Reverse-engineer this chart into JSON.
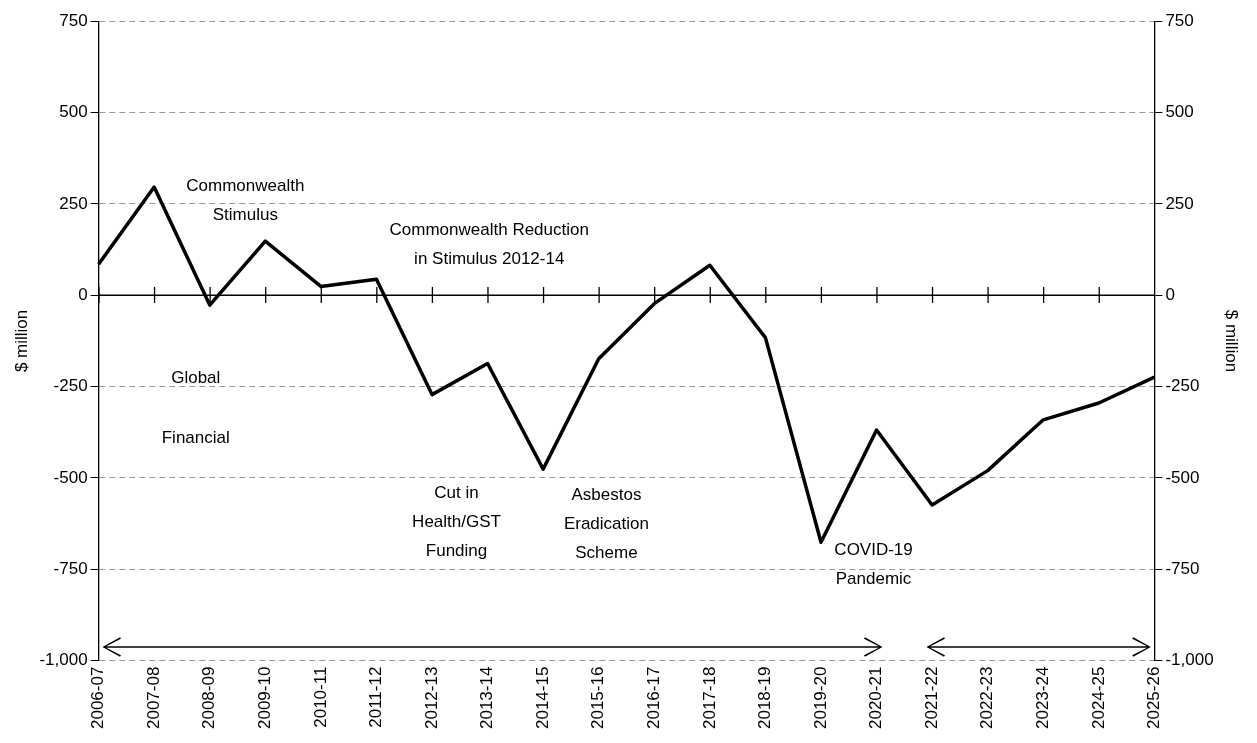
{
  "chart_data": {
    "type": "line",
    "categories": [
      "2006-07",
      "2007-08",
      "2008-09",
      "2009-10",
      "2010-11",
      "2011-12",
      "2012-13",
      "2013-14",
      "2014-15",
      "2015-16",
      "2016-17",
      "2017-18",
      "2018-19",
      "2019-20",
      "2020-21",
      "2021-22",
      "2022-23",
      "2023-24",
      "2024-25",
      "2025-26"
    ],
    "series": [
      {
        "color": "#000000",
        "values": [
          85,
          296,
          -27,
          148,
          24,
          44,
          -272,
          -187,
          -476,
          -174,
          -23,
          82,
          -116,
          -676,
          -369,
          -574,
          -480,
          -341,
          -295,
          -224
        ]
      }
    ],
    "ylabel": "$ million",
    "y2label": "$ million",
    "ylim": [
      -1000,
      750
    ],
    "yticks": [
      {
        "value": -1000,
        "label": "-1,000"
      },
      -750,
      -500,
      -250,
      0,
      250,
      500,
      750
    ],
    "y2lim": [
      -1000,
      750
    ],
    "y2ticks": [
      {
        "value": -1000,
        "label": "-1,000"
      },
      -750,
      -500,
      -250,
      0,
      250,
      500,
      750
    ],
    "grid": "y",
    "marker": "none",
    "line_style": "solid",
    "legend": false,
    "ref_lines": [
      {
        "axis": "y",
        "value": 0,
        "color": "#000000",
        "line_style": "solid"
      }
    ],
    "annotations": [
      "Commonwealth\nStimulus",
      "Commonwealth Reduction\nin Stimulus 2012-14",
      "Global",
      "Financial",
      "Cut in\nHealth/GST\nFunding",
      "Asbestos\nEradication\nScheme",
      "COVID-19\nPandemic"
    ]
  }
}
